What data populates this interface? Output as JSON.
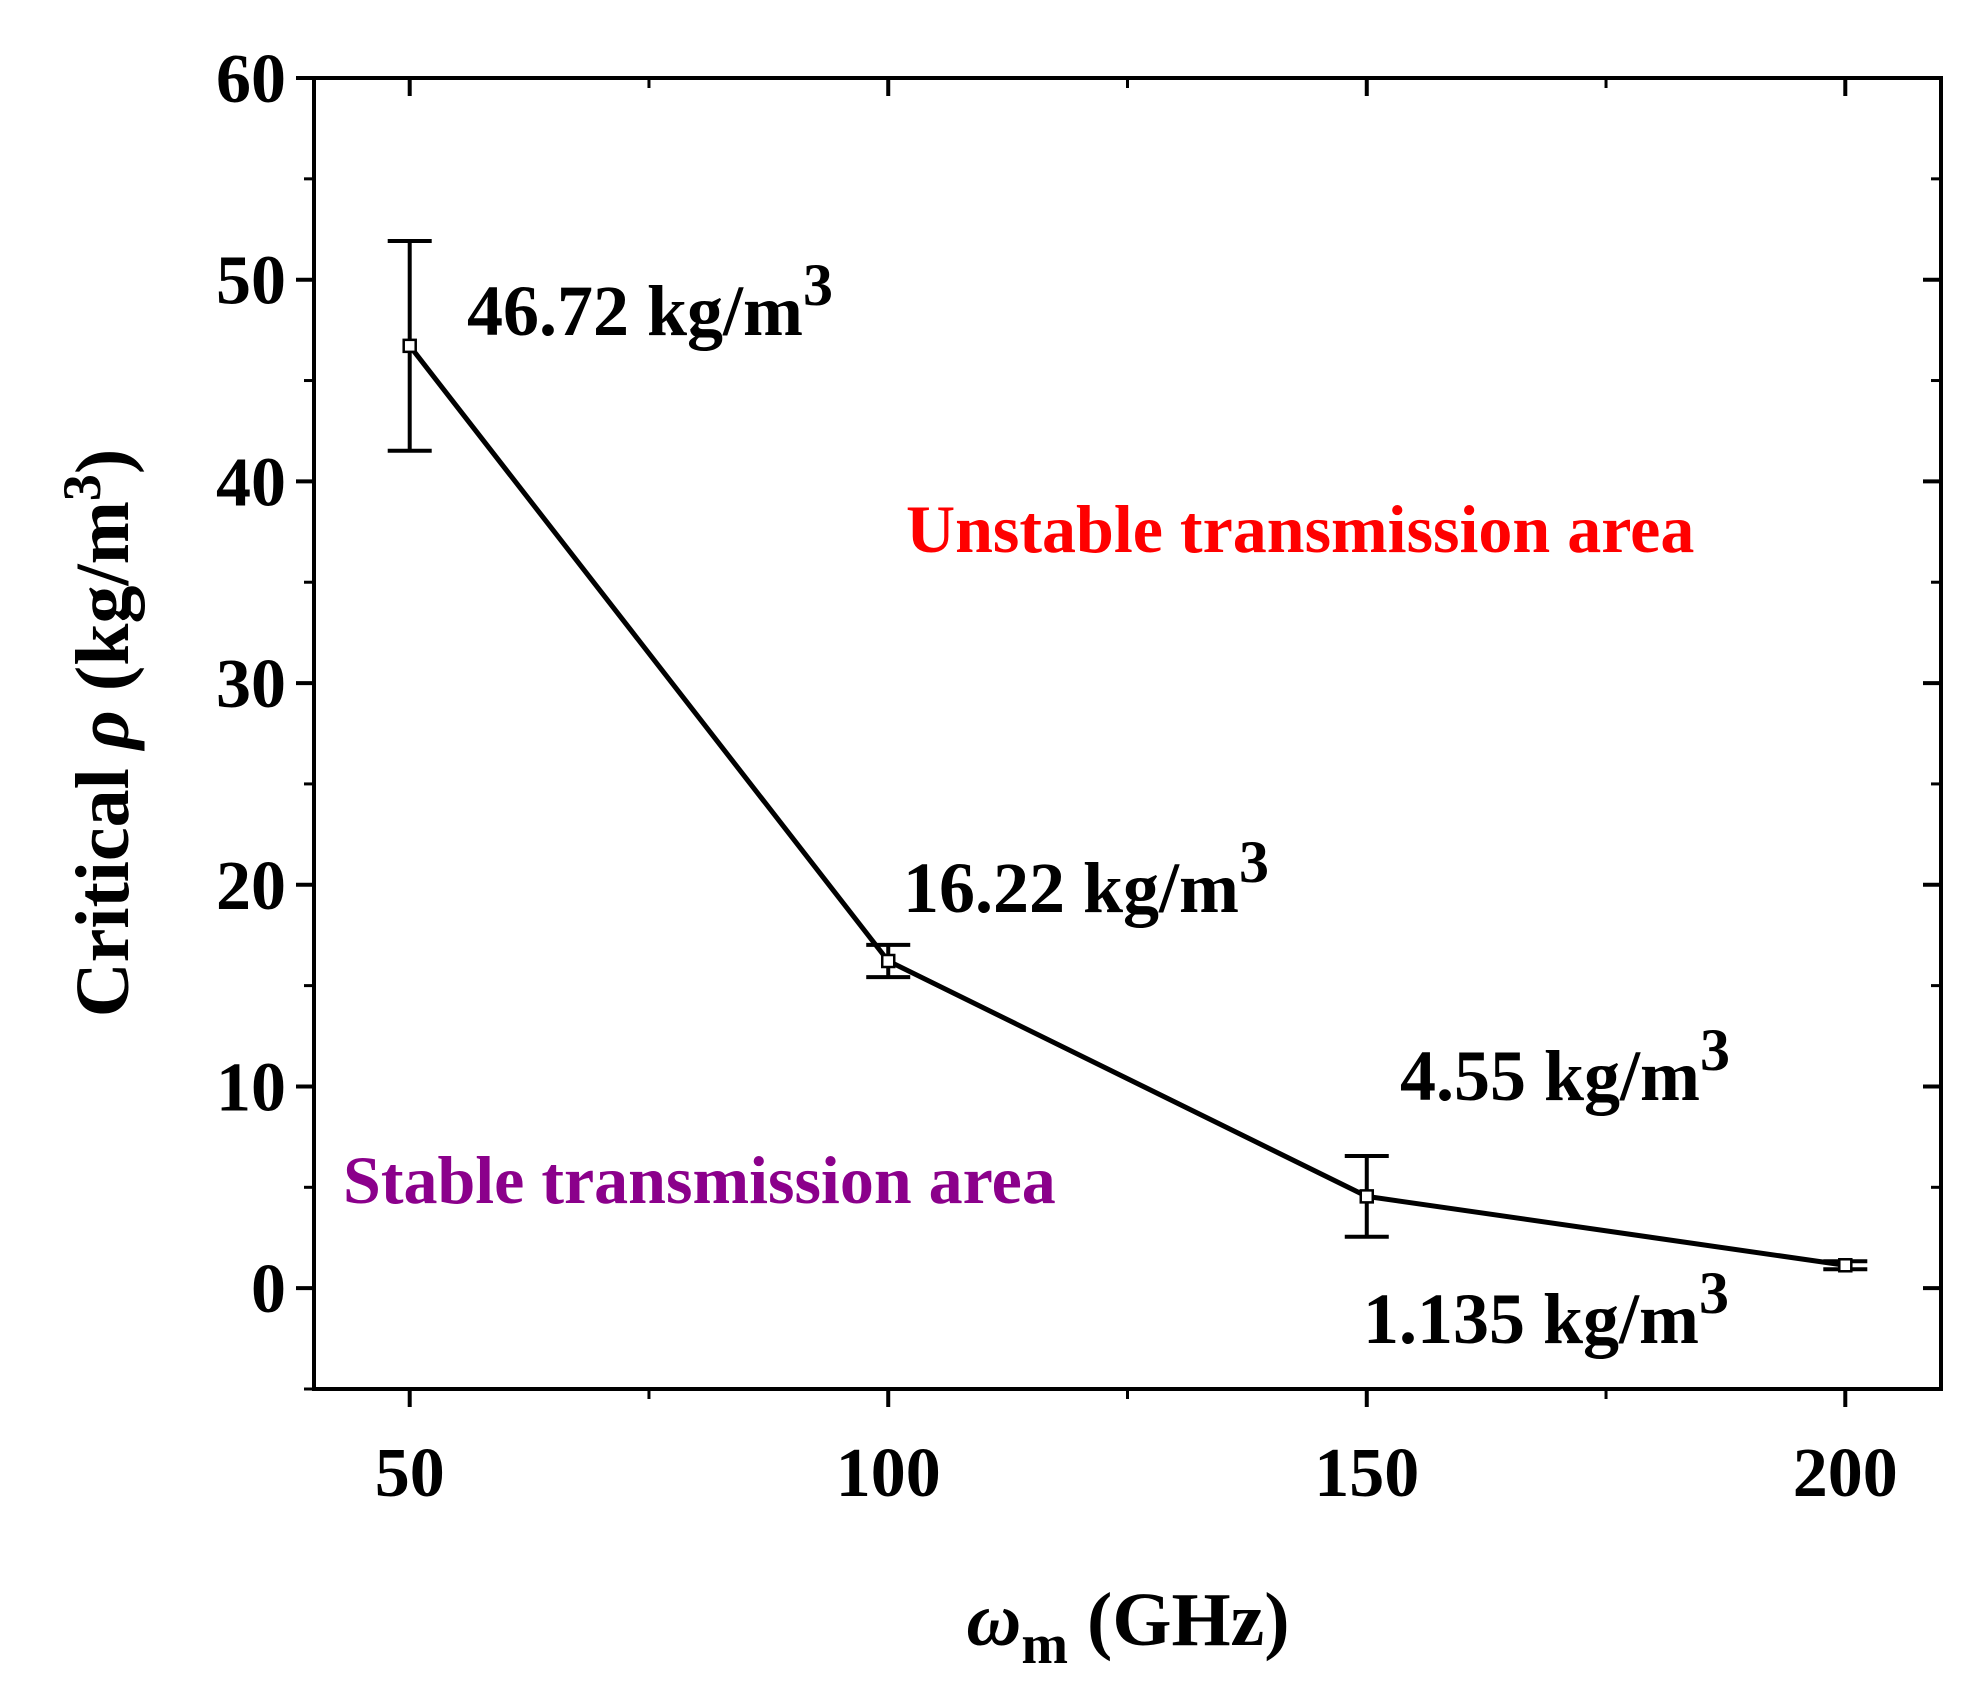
{
  "chart_data": {
    "type": "line",
    "xlabel": {
      "symbol": "ω",
      "subscript": "m",
      "unit": " (GHz)"
    },
    "ylabel": {
      "prefix": "Critical ",
      "symbol": "ρ",
      "unit": " (kg/m",
      "sup": "3",
      "close": ")"
    },
    "xlim": [
      40,
      210
    ],
    "ylim": [
      -5,
      60
    ],
    "xticks": [
      50,
      100,
      150,
      200
    ],
    "xminor": [
      75,
      125,
      175
    ],
    "yticks": [
      0,
      10,
      20,
      30,
      40,
      50,
      60
    ],
    "yminor": [
      -5,
      5,
      15,
      25,
      35,
      45,
      55
    ],
    "grid": false,
    "series": [
      {
        "x": [
          50,
          100,
          150,
          200
        ],
        "y": [
          46.72,
          16.22,
          4.55,
          1.135
        ],
        "yerr": [
          5.2,
          0.8,
          2.0,
          0.2
        ],
        "color": "#000000"
      }
    ],
    "point_labels": [
      {
        "value": "46.72 kg/m",
        "sup": "3"
      },
      {
        "value": "16.22 kg/m",
        "sup": "3"
      },
      {
        "value": "4.55 kg/m",
        "sup": "3"
      },
      {
        "value": "1.135 kg/m",
        "sup": "3"
      }
    ],
    "annotations": [
      {
        "text": "Unstable transmission area",
        "color": "#ff0000"
      },
      {
        "text": "Stable transmission area",
        "color": "#8b008b"
      }
    ]
  }
}
